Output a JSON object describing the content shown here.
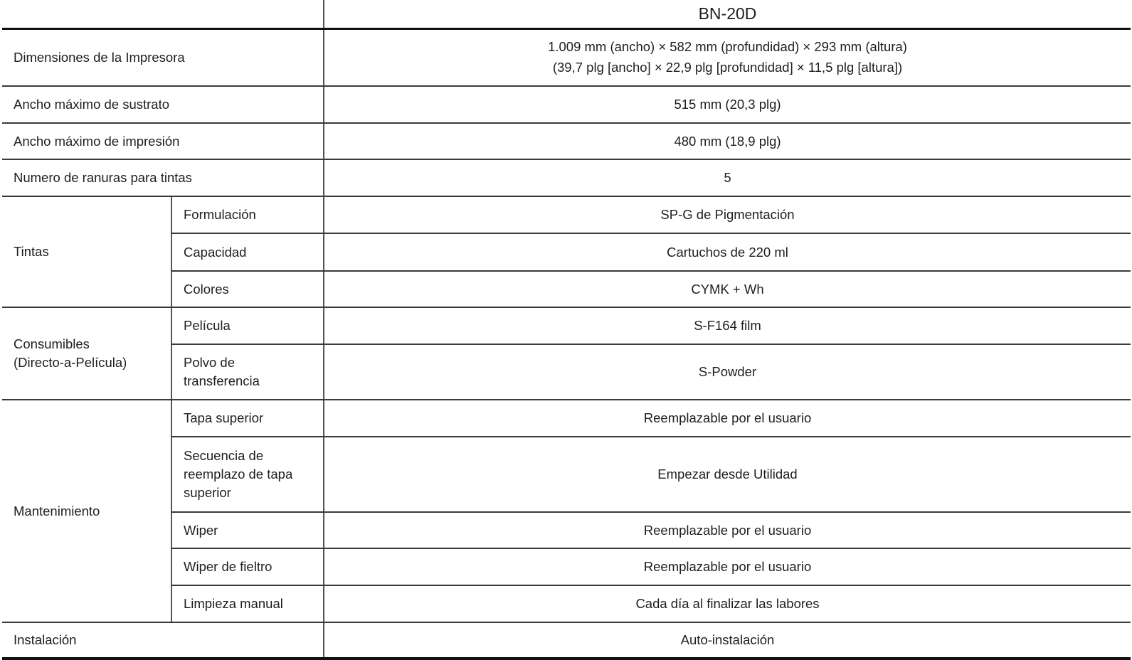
{
  "header": {
    "model": "BN-20D"
  },
  "rows": {
    "dimensions": {
      "label": "Dimensiones de la Impresora",
      "value_line1": "1.009 mm (ancho) × 582 mm (profundidad) × 293 mm (altura)",
      "value_line2": "(39,7 plg [ancho] × 22,9 plg [profundidad] × 11,5 plg [altura])"
    },
    "max_media_width": {
      "label": "Ancho máximo de sustrato",
      "value": "515 mm (20,3 plg)"
    },
    "max_print_width": {
      "label": "Ancho máximo de impresión",
      "value": "480 mm (18,9 plg)"
    },
    "ink_slots": {
      "label": "Numero de ranuras para tintas",
      "value": "5"
    },
    "inks": {
      "label": "Tintas",
      "items": [
        {
          "label": "Formulación",
          "value": "SP-G de Pigmentación"
        },
        {
          "label": "Capacidad",
          "value": "Cartuchos de 220 ml"
        },
        {
          "label": "Colores",
          "value": "CYMK + Wh"
        }
      ]
    },
    "consumables": {
      "label_line1": "Consumibles",
      "label_line2": "(Directo-a-Película)",
      "items": [
        {
          "label": "Película",
          "value": "S-F164 film"
        },
        {
          "label_line1": "Polvo de",
          "label_line2": "transferencia",
          "value": "S-Powder"
        }
      ]
    },
    "maintenance": {
      "label": "Mantenimiento",
      "items": [
        {
          "label": "Tapa superior",
          "value": "Reemplazable por el usuario"
        },
        {
          "label_line1": "Secuencia de",
          "label_line2": "reemplazo de tapa",
          "label_line3": "superior",
          "value": "Empezar desde Utilidad"
        },
        {
          "label": "Wiper",
          "value": "Reemplazable por el usuario"
        },
        {
          "label": "Wiper de fieltro",
          "value": "Reemplazable por el usuario"
        },
        {
          "label": "Limpieza manual",
          "value": "Cada día al finalizar las labores"
        }
      ]
    },
    "installation": {
      "label": "Instalación",
      "value": "Auto-instalación"
    }
  }
}
